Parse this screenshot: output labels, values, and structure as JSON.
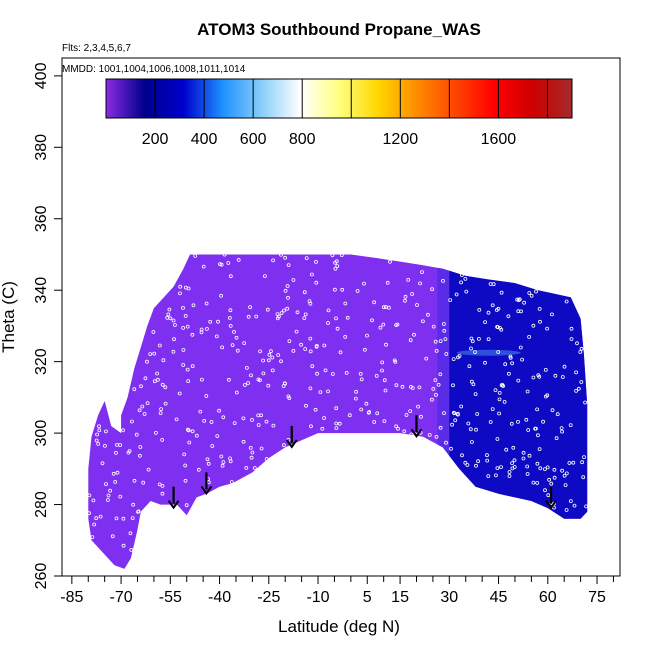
{
  "chart_data": {
    "type": "heatmap",
    "title": "ATOM3 Southbound Propane_WAS",
    "flights_label": "Flts: 2,3,4,5,6,7",
    "dates_label": "MMDD: 1001,1004,1006,1008,1011,1014",
    "xlabel": "Latitude (deg N)",
    "ylabel": "Theta (C)",
    "xlim": [
      -88,
      82
    ],
    "ylim": [
      260,
      405
    ],
    "x_ticks": [
      -85,
      -70,
      -55,
      -40,
      -25,
      -10,
      5,
      15,
      30,
      45,
      60,
      75
    ],
    "x_minor_ticks": [
      -80,
      -75,
      -65,
      -60,
      -50,
      -45,
      -35,
      -30,
      -20,
      -15,
      -5,
      0,
      10,
      20,
      25,
      35,
      40,
      50,
      55,
      65,
      70,
      80
    ],
    "y_ticks": [
      260,
      280,
      300,
      320,
      340,
      360,
      380,
      400
    ],
    "colorbar": {
      "range": [
        0,
        1900
      ],
      "tick_values": [
        200,
        400,
        600,
        800,
        1200,
        1600
      ],
      "tick_labels": [
        "200",
        "400",
        "600",
        "800",
        "1200",
        "1600"
      ],
      "divisions": [
        200,
        400,
        600,
        800,
        1000,
        1200,
        1400,
        1600,
        1800
      ],
      "colors": [
        "#8a2be2",
        "#00008b",
        "#0000cd",
        "#1e90ff",
        "#87cefa",
        "#ffffff",
        "#ffff80",
        "#ffd700",
        "#ff8c00",
        "#ff4500",
        "#ff0000",
        "#cd0000",
        "#a52a2a"
      ]
    },
    "fill_colors": {
      "low": "#7f2ff0",
      "high": "#0e0ac4",
      "mid": "#5a2ce8",
      "streak": "#3a6ae6"
    },
    "domain_outline": [
      [
        -73,
        302
      ],
      [
        -70,
        300
      ],
      [
        -70,
        305
      ],
      [
        -68,
        310
      ],
      [
        -66,
        318
      ],
      [
        -64,
        324
      ],
      [
        -62,
        330
      ],
      [
        -60,
        335
      ],
      [
        -57,
        338
      ],
      [
        -54,
        341
      ],
      [
        -51,
        346
      ],
      [
        -49,
        350
      ],
      [
        -40,
        350
      ],
      [
        -30,
        350
      ],
      [
        -20,
        350
      ],
      [
        -10,
        350
      ],
      [
        0,
        350
      ],
      [
        8,
        349
      ],
      [
        15,
        348
      ],
      [
        22,
        347
      ],
      [
        28,
        346
      ],
      [
        35,
        344
      ],
      [
        42,
        343
      ],
      [
        50,
        342
      ],
      [
        57,
        340
      ],
      [
        62,
        339
      ],
      [
        67,
        338
      ],
      [
        70,
        332
      ],
      [
        71,
        322
      ],
      [
        72,
        308
      ],
      [
        72,
        278
      ],
      [
        70,
        276
      ],
      [
        65,
        276
      ],
      [
        60,
        279
      ],
      [
        55,
        281
      ],
      [
        50,
        282
      ],
      [
        45,
        283
      ],
      [
        38,
        285
      ],
      [
        33,
        290
      ],
      [
        28,
        296
      ],
      [
        22,
        299
      ],
      [
        15,
        300
      ],
      [
        8,
        300
      ],
      [
        0,
        300
      ],
      [
        -5,
        300
      ],
      [
        -10,
        300
      ],
      [
        -15,
        298
      ],
      [
        -20,
        296
      ],
      [
        -25,
        293
      ],
      [
        -30,
        289
      ],
      [
        -36,
        286
      ],
      [
        -40,
        285
      ],
      [
        -44,
        283
      ],
      [
        -47,
        282
      ],
      [
        -50,
        277
      ],
      [
        -53,
        280
      ],
      [
        -56,
        280
      ],
      [
        -58,
        280
      ],
      [
        -61,
        281
      ],
      [
        -64,
        278
      ],
      [
        -65,
        273
      ],
      [
        -67,
        265
      ],
      [
        -69,
        262
      ],
      [
        -72,
        263
      ],
      [
        -75,
        266
      ],
      [
        -79,
        270
      ],
      [
        -80,
        276
      ],
      [
        -80,
        290
      ],
      [
        -79,
        299
      ],
      [
        -77,
        305
      ],
      [
        -75,
        309
      ]
    ],
    "arrows": [
      {
        "lat": -54,
        "theta": 285
      },
      {
        "lat": -44,
        "theta": 289
      },
      {
        "lat": -18,
        "theta": 302
      },
      {
        "lat": 20,
        "theta": 305
      },
      {
        "lat": 61,
        "theta": 285
      }
    ],
    "high_region_boundary_lat": 30,
    "sample_count": 520
  }
}
